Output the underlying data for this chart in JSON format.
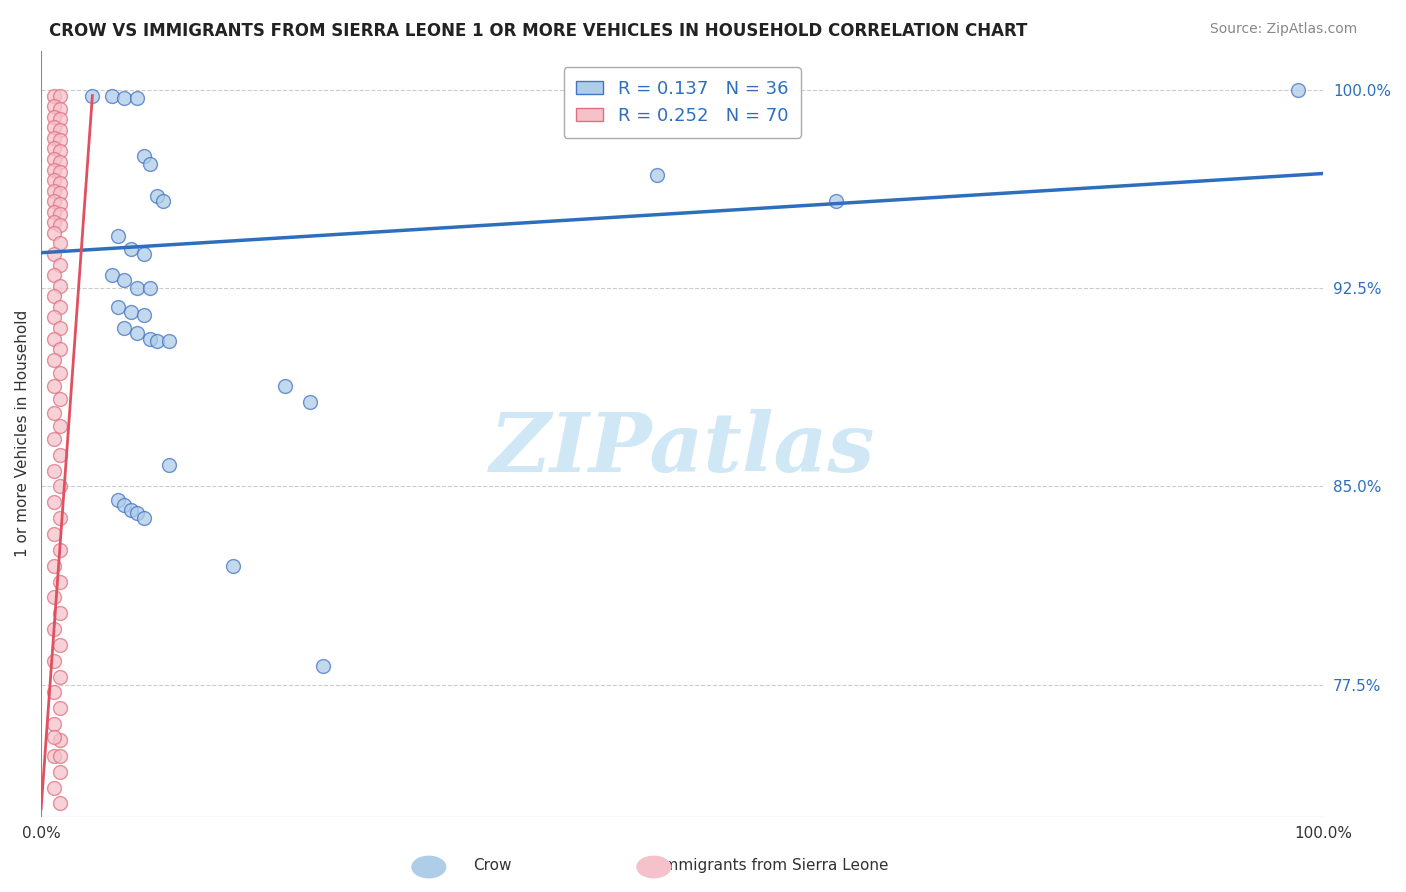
{
  "title": "CROW VS IMMIGRANTS FROM SIERRA LEONE 1 OR MORE VEHICLES IN HOUSEHOLD CORRELATION CHART",
  "source": "Source: ZipAtlas.com",
  "ylabel": "1 or more Vehicles in Household",
  "xmin": 0.0,
  "xmax": 1.0,
  "ymin": 0.725,
  "ymax": 1.015,
  "ytick_positions": [
    0.775,
    0.85,
    0.925,
    1.0
  ],
  "ytick_labels": [
    "77.5%",
    "85.0%",
    "92.5%",
    "100.0%"
  ],
  "crow_R": 0.137,
  "crow_N": 36,
  "sl_R": 0.252,
  "sl_N": 70,
  "crow_color": "#aecde8",
  "crow_edge_color": "#4472c4",
  "sl_color": "#f5c2cb",
  "sl_edge_color": "#e07080",
  "crow_line_color": "#2e6fbd",
  "sl_line_color": "#e05060",
  "background_color": "#ffffff",
  "watermark_text": "ZIPatlas",
  "watermark_color": "#d0e8f5",
  "crow_points": [
    [
      0.04,
      0.998
    ],
    [
      0.055,
      0.998
    ],
    [
      0.065,
      0.997
    ],
    [
      0.075,
      0.997
    ],
    [
      0.08,
      0.975
    ],
    [
      0.085,
      0.972
    ],
    [
      0.09,
      0.96
    ],
    [
      0.095,
      0.958
    ],
    [
      0.06,
      0.945
    ],
    [
      0.07,
      0.94
    ],
    [
      0.08,
      0.938
    ],
    [
      0.055,
      0.93
    ],
    [
      0.065,
      0.928
    ],
    [
      0.075,
      0.925
    ],
    [
      0.085,
      0.925
    ],
    [
      0.06,
      0.918
    ],
    [
      0.07,
      0.916
    ],
    [
      0.08,
      0.915
    ],
    [
      0.065,
      0.91
    ],
    [
      0.075,
      0.908
    ],
    [
      0.085,
      0.906
    ],
    [
      0.09,
      0.905
    ],
    [
      0.1,
      0.905
    ],
    [
      0.19,
      0.888
    ],
    [
      0.21,
      0.882
    ],
    [
      0.1,
      0.858
    ],
    [
      0.06,
      0.845
    ],
    [
      0.065,
      0.843
    ],
    [
      0.07,
      0.841
    ],
    [
      0.075,
      0.84
    ],
    [
      0.08,
      0.838
    ],
    [
      0.15,
      0.82
    ],
    [
      0.48,
      0.968
    ],
    [
      0.62,
      0.958
    ],
    [
      0.98,
      1.0
    ],
    [
      0.22,
      0.782
    ]
  ],
  "sl_points": [
    [
      0.01,
      0.998
    ],
    [
      0.015,
      0.998
    ],
    [
      0.01,
      0.994
    ],
    [
      0.015,
      0.993
    ],
    [
      0.01,
      0.99
    ],
    [
      0.015,
      0.989
    ],
    [
      0.01,
      0.986
    ],
    [
      0.015,
      0.985
    ],
    [
      0.01,
      0.982
    ],
    [
      0.015,
      0.981
    ],
    [
      0.01,
      0.978
    ],
    [
      0.015,
      0.977
    ],
    [
      0.01,
      0.974
    ],
    [
      0.015,
      0.973
    ],
    [
      0.01,
      0.97
    ],
    [
      0.015,
      0.969
    ],
    [
      0.01,
      0.966
    ],
    [
      0.015,
      0.965
    ],
    [
      0.01,
      0.962
    ],
    [
      0.015,
      0.961
    ],
    [
      0.01,
      0.958
    ],
    [
      0.015,
      0.957
    ],
    [
      0.01,
      0.954
    ],
    [
      0.015,
      0.953
    ],
    [
      0.01,
      0.95
    ],
    [
      0.015,
      0.949
    ],
    [
      0.01,
      0.946
    ],
    [
      0.015,
      0.942
    ],
    [
      0.01,
      0.938
    ],
    [
      0.015,
      0.934
    ],
    [
      0.01,
      0.93
    ],
    [
      0.015,
      0.926
    ],
    [
      0.01,
      0.922
    ],
    [
      0.015,
      0.918
    ],
    [
      0.01,
      0.914
    ],
    [
      0.015,
      0.91
    ],
    [
      0.01,
      0.906
    ],
    [
      0.015,
      0.902
    ],
    [
      0.01,
      0.898
    ],
    [
      0.015,
      0.893
    ],
    [
      0.01,
      0.888
    ],
    [
      0.015,
      0.883
    ],
    [
      0.01,
      0.878
    ],
    [
      0.015,
      0.873
    ],
    [
      0.01,
      0.868
    ],
    [
      0.015,
      0.862
    ],
    [
      0.01,
      0.856
    ],
    [
      0.015,
      0.85
    ],
    [
      0.01,
      0.844
    ],
    [
      0.015,
      0.838
    ],
    [
      0.01,
      0.832
    ],
    [
      0.015,
      0.826
    ],
    [
      0.01,
      0.82
    ],
    [
      0.015,
      0.814
    ],
    [
      0.01,
      0.808
    ],
    [
      0.015,
      0.802
    ],
    [
      0.01,
      0.796
    ],
    [
      0.015,
      0.79
    ],
    [
      0.01,
      0.784
    ],
    [
      0.015,
      0.778
    ],
    [
      0.01,
      0.772
    ],
    [
      0.015,
      0.766
    ],
    [
      0.01,
      0.76
    ],
    [
      0.015,
      0.754
    ],
    [
      0.01,
      0.748
    ],
    [
      0.015,
      0.742
    ],
    [
      0.01,
      0.736
    ],
    [
      0.015,
      0.73
    ],
    [
      0.01,
      0.755
    ],
    [
      0.015,
      0.748
    ]
  ],
  "crow_trend_x": [
    0.0,
    1.0
  ],
  "crow_trend_y": [
    0.9385,
    0.9685
  ],
  "sl_trend_x_start": 0.0,
  "sl_trend_x_end": 0.04,
  "sl_trend_y_start": 0.728,
  "sl_trend_y_end": 0.998
}
